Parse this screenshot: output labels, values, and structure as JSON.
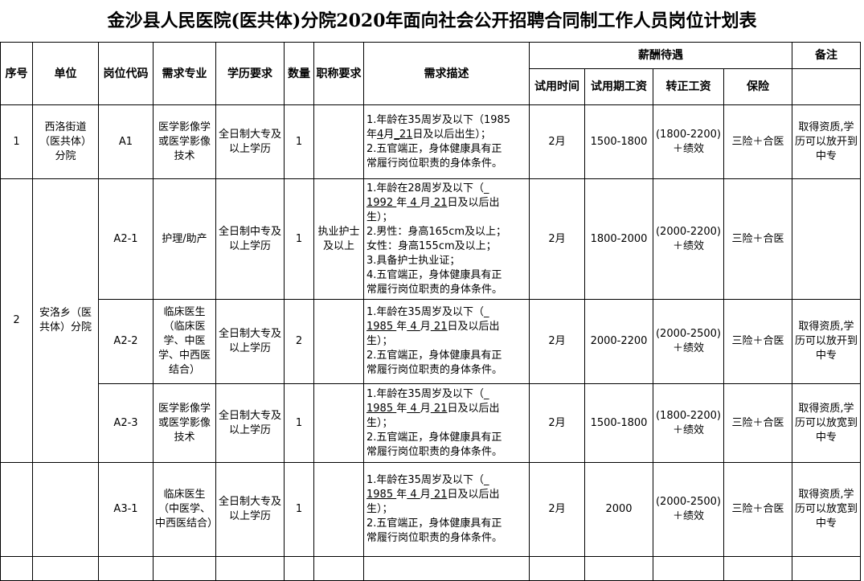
{
  "title": "金沙县人民医院(医共体)分院2020年面向社会公开招聘合同制工作人员岗位计划表",
  "headers": {
    "seq": "序号",
    "unit": "单位",
    "code": "岗位代码",
    "major": "需求专业",
    "education": "学历要求",
    "count": "数量",
    "title_req": "职称要求",
    "description": "需求描述",
    "salary_group": "薪酬待遇",
    "probation": "试用时间",
    "probation_pay": "试用期工资",
    "regular_pay": "转正工资",
    "insurance": "保险",
    "remarks": "备注"
  },
  "rows": [
    {
      "seq": "1",
      "unit": "西洛街道（医共体）分院",
      "code": "A1",
      "major": "医学影像学或医学影像技术",
      "education": "全日制大专及以上学历",
      "count": "1",
      "title_req": "",
      "description": [
        [
          [
            "1.年龄在35周岁及以下（1985",
            0
          ]
        ],
        [
          [
            "年",
            0
          ],
          [
            "4",
            1
          ],
          [
            "月",
            0
          ],
          [
            "_21",
            1
          ],
          [
            "日及以后出生）；",
            0
          ]
        ],
        [
          [
            "2.五官端正，身体健康具有正",
            0
          ]
        ],
        [
          [
            "常履行岗位职责的身体条件。",
            0
          ]
        ]
      ],
      "probation": "2月",
      "probation_pay": "1500-1800",
      "regular_pay": "(1800-2200)＋绩效",
      "insurance": "三险＋合医",
      "remarks": "取得资质,学历可以放开到中专"
    },
    {
      "seq": "2",
      "unit": "安洛乡（医共体）分院",
      "code": "A2-1",
      "major": "护理/助产",
      "education": "全日制中专及以上学历",
      "count": "1",
      "title_req": "执业护士及以上",
      "description": [
        [
          [
            "1.年龄在28周岁及以下（_",
            0
          ]
        ],
        [
          [
            "1992 ",
            1
          ],
          [
            "年",
            0
          ],
          [
            " 4 ",
            1
          ],
          [
            "月",
            0
          ],
          [
            " 21",
            1
          ],
          [
            "日及以后出",
            0
          ]
        ],
        [
          [
            "生）；",
            0
          ]
        ],
        [
          [
            "2.男性：身高165cm及以上；",
            0
          ]
        ],
        [
          [
            "女性：身高155cm及以上；",
            0
          ]
        ],
        [
          [
            "3.具备护士执业证；",
            0
          ]
        ],
        [
          [
            "4.五官端正，身体健康具有正",
            0
          ]
        ],
        [
          [
            "常履行岗位职责的身体条件。",
            0
          ]
        ]
      ],
      "probation": "2月",
      "probation_pay": "1800-2000",
      "regular_pay": "(2000-2200)＋绩效",
      "insurance": "三险＋合医",
      "remarks": ""
    },
    {
      "code": "A2-2",
      "major": "临床医生（临床医学、中医学、中西医结合）",
      "education": "全日制大专及以上学历",
      "count": "2",
      "title_req": "",
      "description": [
        [
          [
            "1.年龄在35周岁及以下（_",
            0
          ]
        ],
        [
          [
            "1985 ",
            1
          ],
          [
            "年",
            0
          ],
          [
            " 4 ",
            1
          ],
          [
            "月",
            0
          ],
          [
            " 21",
            1
          ],
          [
            "日及以后出",
            0
          ]
        ],
        [
          [
            "生）；",
            0
          ]
        ],
        [
          [
            "2.五官端正，身体健康具有正",
            0
          ]
        ],
        [
          [
            "常履行岗位职责的身体条件。",
            0
          ]
        ]
      ],
      "probation": "2月",
      "probation_pay": "2000-2200",
      "regular_pay": "(2000-2500)＋绩效",
      "insurance": "三险＋合医",
      "remarks": "取得资质,学历可以放开到中专"
    },
    {
      "code": "A2-3",
      "major": "医学影像学或医学影像技术",
      "education": "全日制大专及以上学历",
      "count": "1",
      "title_req": "",
      "description": [
        [
          [
            "1.年龄在35周岁及以下（_",
            0
          ]
        ],
        [
          [
            "1985 ",
            1
          ],
          [
            "年",
            0
          ],
          [
            " 4 ",
            1
          ],
          [
            "月",
            0
          ],
          [
            " 21",
            1
          ],
          [
            "日及以后出",
            0
          ]
        ],
        [
          [
            "生）；",
            0
          ]
        ],
        [
          [
            "2.五官端正，身体健康具有正",
            0
          ]
        ],
        [
          [
            "常履行岗位职责的身体条件。",
            0
          ]
        ]
      ],
      "probation": "2月",
      "probation_pay": "1500-1800",
      "regular_pay": "(1800-2200)＋绩效",
      "insurance": "三险＋合医",
      "remarks": "取得资质,学历可以放宽到中专"
    },
    {
      "seq": "",
      "unit": "",
      "code": "A3-1",
      "major": "临床医生（中医学、中西医结合）",
      "education": "全日制大专及以上学历",
      "count": "1",
      "title_req": "",
      "description": [
        [
          [
            "1.年龄在35周岁及以下（_",
            0
          ]
        ],
        [
          [
            "1985 ",
            1
          ],
          [
            "年",
            0
          ],
          [
            " 4 ",
            1
          ],
          [
            "月",
            0
          ],
          [
            " 21",
            1
          ],
          [
            "日及以后出",
            0
          ]
        ],
        [
          [
            "生）；",
            0
          ]
        ],
        [
          [
            "2.五官端正，身体健康具有正",
            0
          ]
        ],
        [
          [
            "常履行岗位职责的身体条件。",
            0
          ]
        ]
      ],
      "probation": "2月",
      "probation_pay": "2000",
      "regular_pay": "(2000-2500)＋绩效",
      "insurance": "三险＋合医",
      "remarks": "取得资质,学历可以放宽到中专"
    }
  ]
}
